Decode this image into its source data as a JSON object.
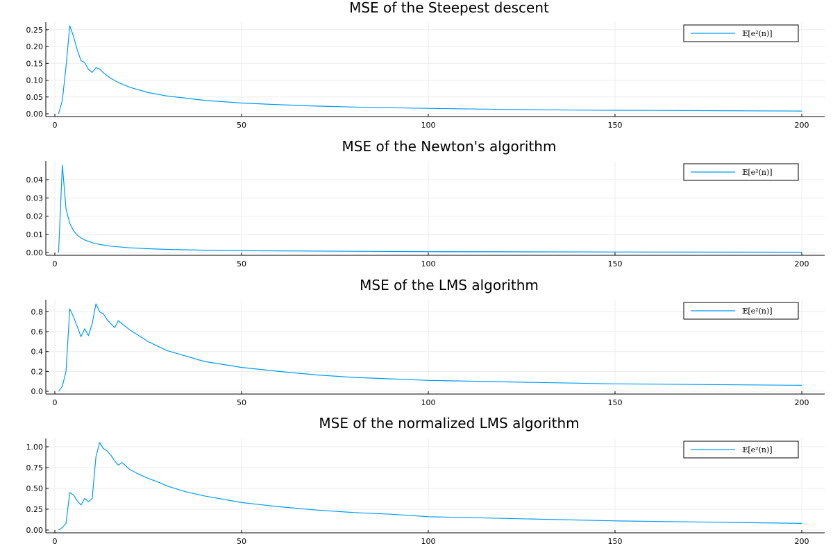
{
  "chart_data": [
    {
      "type": "line",
      "title": "MSE of the Steepest descent",
      "xlabel": "",
      "ylabel": "",
      "xlim": [
        1,
        200
      ],
      "ylim": [
        0,
        0.26
      ],
      "xticks": [
        0,
        50,
        100,
        150,
        200
      ],
      "xtick_labels": [
        "0",
        "50",
        "100",
        "150",
        "200"
      ],
      "yticks": [
        0,
        0.05,
        0.1,
        0.15,
        0.2,
        0.25
      ],
      "ytick_labels": [
        "0.00",
        "0.05",
        "0.10",
        "0.15",
        "0.20",
        "0.25"
      ],
      "grid": true,
      "legend_position": "top-right",
      "series": [
        {
          "name": "𝔼[e²(n)]",
          "color": "#009AFA",
          "x": [
            1,
            2,
            3,
            4,
            5,
            6,
            7,
            8,
            9,
            10,
            11,
            12,
            13,
            15,
            17,
            20,
            25,
            30,
            40,
            50,
            60,
            70,
            80,
            90,
            100,
            120,
            140,
            160,
            180,
            200
          ],
          "y": [
            0,
            0.04,
            0.14,
            0.262,
            0.23,
            0.19,
            0.158,
            0.152,
            0.132,
            0.123,
            0.137,
            0.133,
            0.122,
            0.105,
            0.093,
            0.079,
            0.063,
            0.053,
            0.04,
            0.032,
            0.027,
            0.023,
            0.02,
            0.018,
            0.016,
            0.013,
            0.011,
            0.01,
            0.009,
            0.008
          ]
        }
      ]
    },
    {
      "type": "line",
      "title": "MSE of the Newton's algorithm",
      "xlabel": "",
      "ylabel": "",
      "xlim": [
        1,
        200
      ],
      "ylim": [
        0,
        0.048
      ],
      "xticks": [
        0,
        50,
        100,
        150,
        200
      ],
      "xtick_labels": [
        "0",
        "50",
        "100",
        "150",
        "200"
      ],
      "yticks": [
        0,
        0.01,
        0.02,
        0.03,
        0.04
      ],
      "ytick_labels": [
        "0.00",
        "0.01",
        "0.02",
        "0.03",
        "0.04"
      ],
      "grid": true,
      "legend_position": "top-right",
      "series": [
        {
          "name": "𝔼[e²(n)]",
          "color": "#009AFA",
          "x": [
            1,
            2,
            3,
            4,
            5,
            6,
            7,
            8,
            10,
            12,
            15,
            20,
            25,
            30,
            40,
            50,
            60,
            80,
            100,
            120,
            150,
            200
          ],
          "y": [
            0,
            0.048,
            0.024,
            0.016,
            0.012,
            0.0096,
            0.008,
            0.0069,
            0.0054,
            0.0044,
            0.0035,
            0.0026,
            0.0021,
            0.0017,
            0.0013,
            0.001,
            0.0009,
            0.0007,
            0.0005,
            0.0004,
            0.0003,
            0.0002
          ]
        }
      ]
    },
    {
      "type": "line",
      "title": "MSE of the LMS algorithm",
      "xlabel": "",
      "ylabel": "",
      "xlim": [
        1,
        200
      ],
      "ylim": [
        0,
        0.88
      ],
      "xticks": [
        0,
        50,
        100,
        150,
        200
      ],
      "xtick_labels": [
        "0",
        "50",
        "100",
        "150",
        "200"
      ],
      "yticks": [
        0,
        0.2,
        0.4,
        0.6,
        0.8
      ],
      "ytick_labels": [
        "0.0",
        "0.2",
        "0.4",
        "0.6",
        "0.8"
      ],
      "grid": true,
      "legend_position": "top-right",
      "series": [
        {
          "name": "𝔼[e²(n)]",
          "color": "#009AFA",
          "x": [
            1,
            2,
            3,
            4,
            5,
            6,
            7,
            8,
            9,
            10,
            11,
            12,
            13,
            14,
            15,
            16,
            17,
            18,
            20,
            25,
            30,
            40,
            50,
            60,
            70,
            80,
            90,
            100,
            120,
            150,
            200
          ],
          "y": [
            0,
            0.05,
            0.2,
            0.83,
            0.75,
            0.65,
            0.55,
            0.63,
            0.56,
            0.68,
            0.88,
            0.8,
            0.78,
            0.72,
            0.68,
            0.64,
            0.71,
            0.68,
            0.62,
            0.5,
            0.41,
            0.3,
            0.24,
            0.2,
            0.165,
            0.14,
            0.125,
            0.11,
            0.095,
            0.075,
            0.06
          ]
        }
      ]
    },
    {
      "type": "line",
      "title": "MSE of the normalized LMS algorithm",
      "xlabel": "",
      "ylabel": "",
      "xlim": [
        1,
        200
      ],
      "ylim": [
        0,
        1.05
      ],
      "xticks": [
        0,
        50,
        100,
        150,
        200
      ],
      "xtick_labels": [
        "0",
        "50",
        "100",
        "150",
        "200"
      ],
      "yticks": [
        0,
        0.25,
        0.5,
        0.75,
        1.0
      ],
      "ytick_labels": [
        "0.00",
        "0.25",
        "0.50",
        "0.75",
        "1.00"
      ],
      "grid": true,
      "legend_position": "top-right",
      "series": [
        {
          "name": "𝔼[e²(n)]",
          "color": "#009AFA",
          "x": [
            1,
            2,
            3,
            4,
            5,
            6,
            7,
            8,
            9,
            10,
            11,
            12,
            13,
            14,
            15,
            16,
            17,
            18,
            20,
            22,
            25,
            28,
            30,
            35,
            40,
            50,
            60,
            70,
            80,
            90,
            100,
            120,
            150,
            200
          ],
          "y": [
            0,
            0.03,
            0.08,
            0.45,
            0.42,
            0.35,
            0.3,
            0.38,
            0.34,
            0.38,
            0.88,
            1.05,
            0.98,
            0.95,
            0.9,
            0.83,
            0.78,
            0.81,
            0.73,
            0.68,
            0.62,
            0.57,
            0.53,
            0.46,
            0.41,
            0.33,
            0.28,
            0.24,
            0.21,
            0.19,
            0.16,
            0.14,
            0.11,
            0.08
          ]
        }
      ]
    }
  ]
}
